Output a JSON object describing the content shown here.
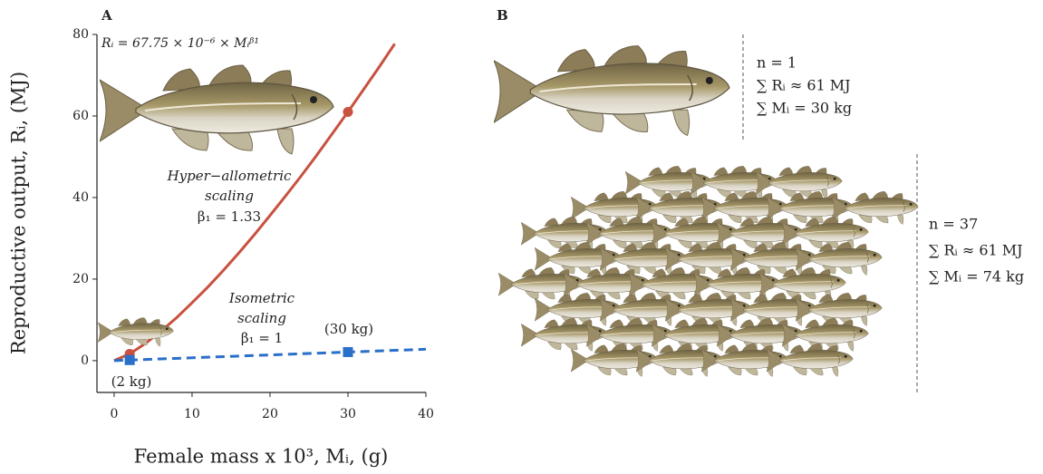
{
  "chart_data": {
    "type": "line",
    "panel_label": "A",
    "equation": "Rᵢ = 67.75 × 10⁻⁶ × Mᵢᵝ¹",
    "xlabel": "Female mass x 10³, Mᵢ, (g)",
    "ylabel": "Reproductive output, Rᵢ, (MJ)",
    "xlim": [
      -2.2,
      40
    ],
    "ylim": [
      -7.8,
      80
    ],
    "xticks": [
      0,
      10,
      20,
      30,
      40
    ],
    "yticks": [
      0,
      20,
      40,
      60,
      80
    ],
    "series": [
      {
        "color": "#c8513f",
        "dash": false,
        "x": [
          0,
          2,
          4,
          6,
          8,
          10,
          12,
          14,
          16,
          18,
          20,
          22,
          24,
          26,
          28,
          30,
          32,
          34,
          36
        ],
        "values": [
          0,
          1.66,
          4.19,
          7.17,
          10.5,
          14.2,
          18.0,
          22.1,
          26.4,
          30.9,
          35.6,
          40.4,
          45.3,
          50.4,
          55.7,
          61,
          66.5,
          72.0,
          77.7
        ],
        "marker": "circle",
        "marker_x": [
          2,
          30
        ],
        "marker_values": [
          1.66,
          61
        ]
      },
      {
        "color": "#2a6fc9",
        "dash": true,
        "x": [
          0,
          40
        ],
        "values": [
          0,
          2.8
        ],
        "marker": "square",
        "marker_x": [
          2,
          30
        ],
        "marker_values": [
          0.14,
          2.1
        ]
      }
    ],
    "annotations": [
      "Hyper−allometric",
      "scaling",
      "β₁ = 1.33",
      "Isometric",
      "scaling",
      "β₁ = 1",
      "(30 kg)",
      "(2 kg)"
    ]
  },
  "panel_b": {
    "label": "B",
    "groups": [
      {
        "lines": [
          "n = 1",
          "∑ Rᵢ ≈ 61 MJ",
          "∑ Mᵢ = 30 kg"
        ]
      },
      {
        "lines": [
          "n = 37",
          "∑ Rᵢ ≈ 61 MJ",
          "∑ Mᵢ = 74 kg"
        ]
      }
    ]
  }
}
